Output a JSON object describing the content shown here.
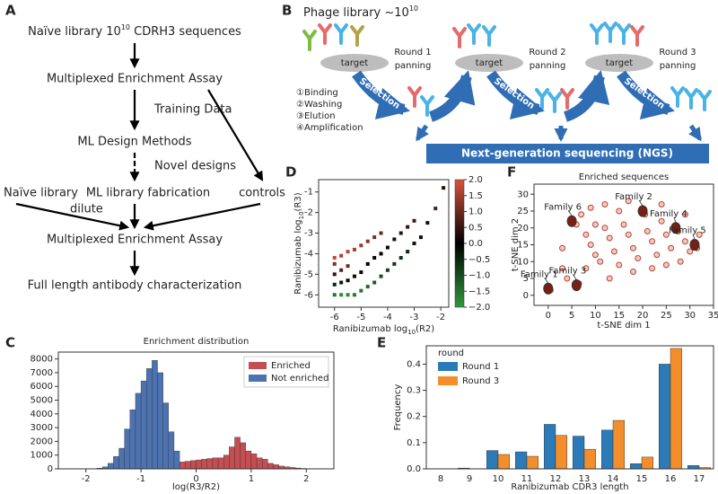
{
  "panels": {
    "A": {
      "label": "A",
      "nodes": [
        {
          "text": "Naïve library 10",
          "sup": "10",
          "tail": " CDRH3 sequences"
        },
        "Multiplexed Enrichment Assay",
        "ML Design Methods",
        "Naïve library",
        "ML library fabrication",
        "controls",
        "Multiplexed Enrichment Assay",
        "Full length antibody characterization"
      ],
      "edge_labels": [
        "Training Data",
        "Novel designs",
        "dilute"
      ]
    },
    "B": {
      "label": "B",
      "title": {
        "text": "Phage library ~10",
        "sup": "10"
      },
      "target": "target",
      "rounds": [
        [
          "Round 1",
          "panning"
        ],
        [
          "Round 2",
          "panning"
        ],
        [
          "Round 3",
          "panning"
        ]
      ],
      "selection": "Selection",
      "steps": [
        "①Binding",
        "②Washing",
        "③Elution",
        "④Amplification"
      ],
      "ngs": "Next-generation sequencing (NGS)"
    },
    "C": {
      "label": "C"
    },
    "D": {
      "label": "D"
    },
    "E": {
      "label": "E"
    },
    "F": {
      "label": "F"
    }
  },
  "chart_data": [
    {
      "type": "histogram",
      "title": "Enrichment distribution",
      "xlabel": "log(R3/R2)",
      "xlim": [
        -2.5,
        2.5
      ],
      "ylim": [
        0,
        8500
      ],
      "xticks": [
        -2,
        -1,
        0,
        1,
        2
      ],
      "yticks": [
        0,
        1000,
        2000,
        3000,
        4000,
        5000,
        6000,
        7000,
        8000
      ],
      "legend": "upper right",
      "series": [
        {
          "name": "Enriched",
          "color": "#c44e52",
          "bins": [
            -0.3,
            -0.2,
            -0.1,
            0,
            0.1,
            0.2,
            0.3,
            0.4,
            0.5,
            0.6,
            0.7,
            0.8,
            0.9,
            1.0,
            1.1,
            1.2,
            1.3,
            1.4,
            1.5,
            1.6,
            1.7,
            1.8,
            1.9,
            2.0
          ],
          "values": [
            500,
            550,
            600,
            650,
            700,
            750,
            800,
            800,
            1000,
            1600,
            2300,
            1900,
            1300,
            1100,
            800,
            700,
            400,
            300,
            200,
            150,
            100,
            60,
            30
          ]
        },
        {
          "name": "Not enriched",
          "color": "#4c72b0",
          "bins": [
            -1.8,
            -1.7,
            -1.6,
            -1.5,
            -1.4,
            -1.3,
            -1.2,
            -1.1,
            -1.0,
            -0.9,
            -0.8,
            -0.7,
            -0.6,
            -0.5,
            -0.4,
            -0.3
          ],
          "values": [
            50,
            150,
            400,
            900,
            1500,
            2900,
            4300,
            5500,
            6400,
            7300,
            7900,
            7000,
            4800,
            2700,
            1300
          ]
        }
      ]
    },
    {
      "type": "scatter",
      "xlabel": {
        "text": "Ranibizumab  log",
        "sub": "10",
        "tail": "(R2)"
      },
      "ylabel": {
        "text": "Ranibizumab  log",
        "sub": "10",
        "tail": "(R3)"
      },
      "xlim": [
        -6.6,
        -1.7
      ],
      "ylim": [
        -6.6,
        -0.4
      ],
      "xticks": [
        -6,
        -5,
        -4,
        -3,
        -2
      ],
      "yticks": [
        -1,
        -2,
        -3,
        -4,
        -5,
        -6
      ],
      "x": [
        -6,
        -6,
        -6,
        -6,
        -6,
        -5.75,
        -5.75,
        -5.75,
        -5.75,
        -5.5,
        -5.5,
        -5.5,
        -5.5,
        -5.25,
        -5.25,
        -5.25,
        -5,
        -5,
        -5,
        -4.75,
        -4.75,
        -4.75,
        -4.5,
        -4.5,
        -4.5,
        -4.25,
        -4.25,
        -4.25,
        -4,
        -4,
        -3.75,
        -3.75,
        -3.5,
        -3.5,
        -3.25,
        -3.25,
        -3,
        -3,
        -2.75,
        -2.5,
        -2.2,
        -1.9
      ],
      "y": [
        -6,
        -5.5,
        -5,
        -4.5,
        -4.2,
        -6,
        -5.4,
        -4.8,
        -4.1,
        -6,
        -5.3,
        -4.6,
        -3.9,
        -6,
        -5.1,
        -3.8,
        -5.8,
        -4.9,
        -3.6,
        -5.6,
        -4.5,
        -3.4,
        -5.4,
        -4.2,
        -3.2,
        -5.1,
        -4,
        -3,
        -4.8,
        -3.7,
        -4.5,
        -3.3,
        -4.2,
        -3,
        -3.9,
        -2.7,
        -3.5,
        -2.4,
        -3.2,
        -2.5,
        -1.8,
        -0.8
      ],
      "c": [
        -1.5,
        -0.5,
        0.5,
        1.2,
        1.8,
        -1.8,
        -0.3,
        0.8,
        1.6,
        -1.8,
        -0.2,
        1,
        1.7,
        -1.6,
        0.2,
        1.5,
        -1.5,
        0.1,
        1.4,
        -1.4,
        0,
        1.3,
        -1.2,
        -0.1,
        1.1,
        -1,
        0,
        1,
        -0.9,
        0.2,
        -0.7,
        0.3,
        -0.6,
        0.4,
        -0.5,
        0.5,
        -0.3,
        0.6,
        -0.2,
        0.3,
        0.8,
        0.4
      ],
      "cmap": [
        "#2f9a3a",
        "#000000",
        "#d9533b"
      ],
      "colorbar": {
        "lim": [
          -2,
          2
        ],
        "ticks": [
          {
            "value": 2,
            "label": "2.0"
          },
          {
            "value": 1.5,
            "label": "1.5"
          },
          {
            "value": 1,
            "label": "1.0"
          },
          {
            "value": 0.5,
            "label": "0.5"
          },
          {
            "value": 0,
            "label": "0.0"
          },
          {
            "value": -0.5,
            "label": "−0.5"
          },
          {
            "value": -1,
            "label": "−1.0"
          },
          {
            "value": -1.5,
            "label": "−1.5"
          },
          {
            "value": -2,
            "label": "−2.0"
          }
        ]
      }
    },
    {
      "type": "bar",
      "categories": [
        "8",
        "9",
        "10",
        "11",
        "12",
        "13",
        "14",
        "15",
        "16",
        "17"
      ],
      "xlabel": "Ranibizumab CDR3 length",
      "ylabel": "Frequency",
      "legend_title": "round",
      "legend": "upper left",
      "ylim": [
        0,
        0.47
      ],
      "yticks": [
        {
          "value": 0,
          "label": "0.0"
        },
        {
          "value": 0.1,
          "label": "0.1"
        },
        {
          "value": 0.2,
          "label": "0.2"
        },
        {
          "value": 0.3,
          "label": "0.3"
        },
        {
          "value": 0.4,
          "label": "0.4"
        }
      ],
      "series": [
        {
          "name": "Round 1",
          "color": "#2b7bb9",
          "values": [
            0,
            0.003,
            0.07,
            0.065,
            0.17,
            0.125,
            0.148,
            0.02,
            0.4,
            0.013
          ]
        },
        {
          "name": "Round 3",
          "color": "#f28e2b",
          "values": [
            0,
            0,
            0.055,
            0.048,
            0.128,
            0.075,
            0.185,
            0.045,
            0.46,
            0.005
          ]
        }
      ]
    },
    {
      "type": "scatter",
      "title": "Enriched sequences",
      "xlabel": "t-SNE dim 1",
      "ylabel": "t-SNE dim 2",
      "xlim": [
        -3,
        35
      ],
      "ylim": [
        -3,
        33
      ],
      "xticks": [
        0,
        5,
        10,
        15,
        20,
        25,
        30,
        35
      ],
      "yticks": [
        0,
        5,
        10,
        15,
        20,
        25,
        30
      ],
      "color": "#b5473a",
      "x": [
        0,
        0.5,
        3,
        4,
        6,
        6.5,
        5,
        6,
        7,
        8,
        9,
        10,
        11,
        12,
        13,
        14,
        15,
        16,
        17,
        18,
        19,
        20,
        20.5,
        21,
        22,
        23,
        24,
        25,
        26,
        27,
        27.5,
        28,
        29,
        30,
        31,
        31.5,
        32,
        9,
        12,
        15,
        18,
        22,
        25,
        13,
        8,
        10,
        17,
        24,
        29,
        3
      ],
      "y": [
        2,
        1.5,
        8,
        5,
        3,
        3.5,
        22,
        21,
        24,
        18,
        15,
        12,
        10,
        20,
        17,
        13,
        9,
        21,
        18,
        14,
        11,
        25,
        24,
        19,
        16,
        12,
        22,
        18,
        14,
        20,
        19,
        10,
        16,
        13,
        15,
        14,
        18,
        26,
        27,
        25,
        7,
        8,
        9,
        5,
        8,
        21,
        28,
        27,
        24,
        14
      ],
      "annotations": [
        {
          "text": "Family 1",
          "x": 0,
          "y": 2
        },
        {
          "text": "Family 2",
          "x": 20,
          "y": 25
        },
        {
          "text": "Family 3",
          "x": 6,
          "y": 3
        },
        {
          "text": "Family 4",
          "x": 27,
          "y": 20
        },
        {
          "text": "Family 5",
          "x": 31,
          "y": 15
        },
        {
          "text": "Family 6",
          "x": 5,
          "y": 22
        }
      ]
    }
  ]
}
